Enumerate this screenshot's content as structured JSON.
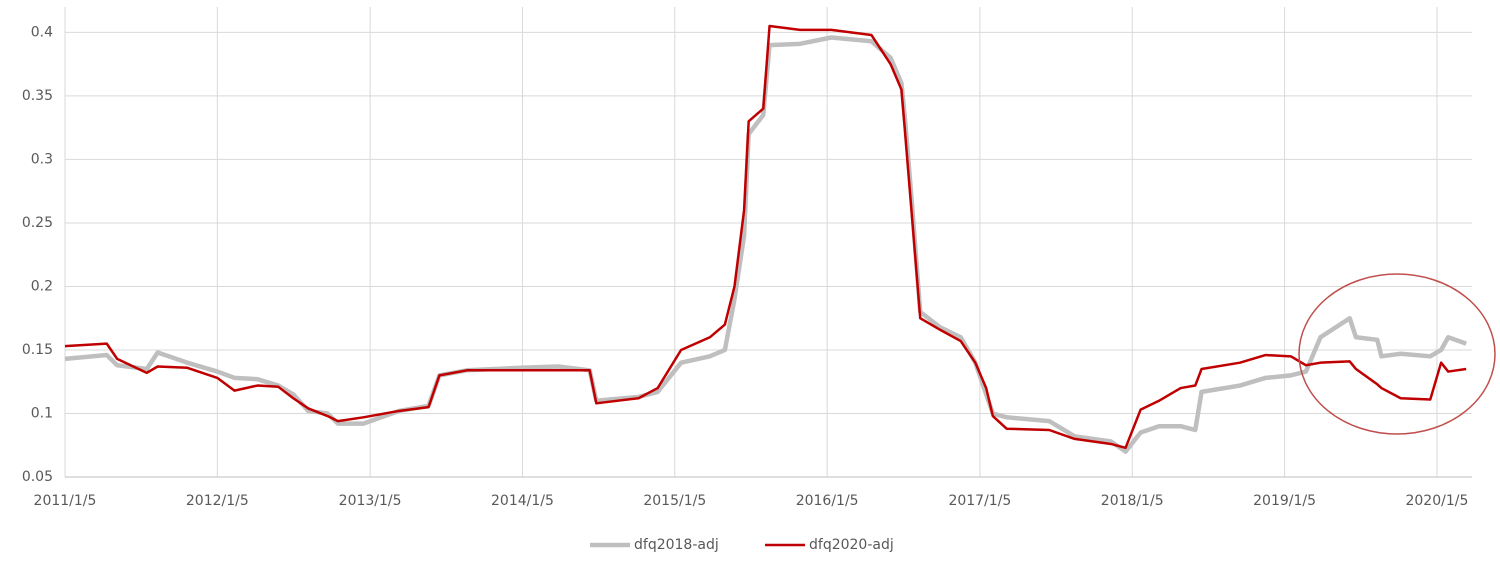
{
  "chart_data": {
    "type": "line",
    "x": [
      "2011/1/5",
      "2011/4/15",
      "2011/5/10",
      "2011/7/20",
      "2011/8/15",
      "2011/10/25",
      "2012/1/5",
      "2012/2/15",
      "2012/4/10",
      "2012/5/30",
      "2012/7/5",
      "2012/8/10",
      "2012/9/25",
      "2012/10/20",
      "2012/12/20",
      "2013/3/15",
      "2013/5/25",
      "2013/6/20",
      "2013/8/25",
      "2014/1/1",
      "2014/4/1",
      "2014/6/15",
      "2014/7/1",
      "2014/10/10",
      "2014/11/25",
      "2015/1/20",
      "2015/3/30",
      "2015/5/5",
      "2015/5/28",
      "2015/6/20",
      "2015/7/1",
      "2015/8/5",
      "2015/8/20",
      "2015/11/1",
      "2016/1/15",
      "2016/4/20",
      "2016/6/5",
      "2016/7/1",
      "2016/7/10",
      "2016/7/25",
      "2016/8/15",
      "2016/10/1",
      "2016/11/20",
      "2016/12/25",
      "2017/1/20",
      "2017/2/5",
      "2017/3/10",
      "2017/6/20",
      "2017/8/20",
      "2017/11/15",
      "2017/12/20",
      "2018/1/25",
      "2018/3/10",
      "2018/5/1",
      "2018/6/5",
      "2018/6/20",
      "2018/9/20",
      "2018/11/20",
      "2019/1/20",
      "2019/2/25",
      "2019/4/1",
      "2019/6/10",
      "2019/6/25",
      "2019/8/15",
      "2019/8/25",
      "2019/10/10",
      "2019/12/20",
      "2020/1/15",
      "2020/2/1",
      "2020/3/15"
    ],
    "series": [
      {
        "name": "dfq2018-adj",
        "color": "#bfbfbf",
        "values": [
          0.143,
          0.146,
          0.138,
          0.135,
          0.148,
          0.14,
          0.133,
          0.128,
          0.127,
          0.122,
          0.115,
          0.102,
          0.1,
          0.092,
          0.092,
          0.102,
          0.106,
          0.13,
          0.134,
          0.136,
          0.137,
          0.134,
          0.11,
          0.113,
          0.117,
          0.14,
          0.145,
          0.15,
          0.19,
          0.24,
          0.32,
          0.335,
          0.39,
          0.391,
          0.396,
          0.393,
          0.38,
          0.36,
          0.33,
          0.27,
          0.18,
          0.168,
          0.16,
          0.14,
          0.115,
          0.1,
          0.097,
          0.094,
          0.082,
          0.078,
          0.07,
          0.085,
          0.09,
          0.09,
          0.087,
          0.117,
          0.122,
          0.128,
          0.13,
          0.133,
          0.16,
          0.175,
          0.16,
          0.158,
          0.145,
          0.147,
          0.145,
          0.15,
          0.16,
          0.155
        ]
      },
      {
        "name": "dfq2020-adj",
        "color": "#c00000",
        "values": [
          0.153,
          0.155,
          0.143,
          0.132,
          0.137,
          0.136,
          0.128,
          0.118,
          0.122,
          0.121,
          0.112,
          0.104,
          0.098,
          0.094,
          0.097,
          0.102,
          0.105,
          0.13,
          0.134,
          0.134,
          0.134,
          0.134,
          0.108,
          0.112,
          0.12,
          0.15,
          0.16,
          0.17,
          0.2,
          0.26,
          0.33,
          0.34,
          0.405,
          0.402,
          0.402,
          0.398,
          0.375,
          0.355,
          0.32,
          0.26,
          0.175,
          0.166,
          0.157,
          0.14,
          0.12,
          0.098,
          0.088,
          0.087,
          0.08,
          0.076,
          0.073,
          0.103,
          0.11,
          0.12,
          0.122,
          0.135,
          0.14,
          0.146,
          0.145,
          0.138,
          0.14,
          0.141,
          0.135,
          0.123,
          0.12,
          0.112,
          0.111,
          0.14,
          0.133,
          0.135
        ]
      }
    ],
    "xlim": [
      "2011/1/5",
      "2020/3/29"
    ],
    "xticks": [
      "2011/1/5",
      "2012/1/5",
      "2013/1/5",
      "2014/1/5",
      "2015/1/5",
      "2016/1/5",
      "2017/1/5",
      "2018/1/5",
      "2019/1/5",
      "2020/1/5"
    ],
    "ylim": [
      0.05,
      0.42
    ],
    "yticks": [
      0.05,
      0.1,
      0.15,
      0.2,
      0.25,
      0.3,
      0.35,
      0.4
    ],
    "grid": true,
    "legend": "bottom"
  }
}
